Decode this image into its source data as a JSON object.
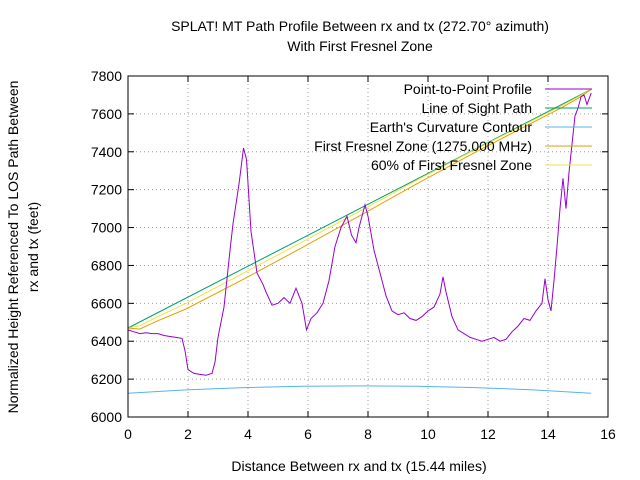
{
  "chart_data": {
    "type": "line",
    "title": "SPLAT! MT Path Profile Between rx and tx (272.70° azimuth)",
    "subtitle": "With First Fresnel Zone",
    "xlabel": "Distance Between rx and tx (15.44 miles)",
    "ylabel_line1": "Normalized Height Referenced To LOS Path Between",
    "ylabel_line2": "rx and tx (feet)",
    "xlim": [
      0,
      16
    ],
    "ylim": [
      6000,
      7800
    ],
    "x_ticks": [
      "0",
      "2",
      "4",
      "6",
      "8",
      "10",
      "12",
      "14",
      "16"
    ],
    "y_ticks": [
      "6000",
      "6200",
      "6400",
      "6600",
      "6800",
      "7000",
      "7200",
      "7400",
      "7600",
      "7800"
    ],
    "grid": true,
    "legend_position": "top-right",
    "series": [
      {
        "name": "Point-to-Point Profile",
        "color": "#9400d3",
        "x": [
          0,
          0.2,
          0.4,
          0.6,
          0.8,
          1.0,
          1.2,
          1.4,
          1.6,
          1.8,
          1.9,
          2.0,
          2.2,
          2.4,
          2.6,
          2.8,
          2.9,
          3.0,
          3.2,
          3.4,
          3.5,
          3.7,
          3.85,
          3.95,
          4.1,
          4.3,
          4.5,
          4.6,
          4.8,
          5.0,
          5.2,
          5.4,
          5.6,
          5.8,
          5.95,
          6.1,
          6.3,
          6.5,
          6.7,
          6.9,
          7.1,
          7.3,
          7.45,
          7.6,
          7.7,
          7.9,
          8.0,
          8.2,
          8.4,
          8.6,
          8.8,
          9.0,
          9.2,
          9.4,
          9.6,
          9.8,
          10.0,
          10.2,
          10.4,
          10.5,
          10.6,
          10.8,
          11.0,
          11.2,
          11.4,
          11.6,
          11.8,
          12.0,
          12.2,
          12.4,
          12.6,
          12.8,
          13.0,
          13.2,
          13.4,
          13.6,
          13.8,
          13.9,
          14.0,
          14.1,
          14.2,
          14.3,
          14.4,
          14.5,
          14.6,
          14.7,
          14.8,
          14.9,
          15.0,
          15.1,
          15.2,
          15.3,
          15.44
        ],
        "values": [
          6460,
          6450,
          6440,
          6445,
          6440,
          6440,
          6430,
          6425,
          6420,
          6415,
          6350,
          6250,
          6230,
          6225,
          6220,
          6230,
          6290,
          6420,
          6580,
          6880,
          7020,
          7230,
          7420,
          7360,
          6980,
          6760,
          6700,
          6660,
          6590,
          6600,
          6630,
          6600,
          6680,
          6600,
          6460,
          6520,
          6550,
          6600,
          6720,
          6900,
          7000,
          7060,
          6960,
          6920,
          7000,
          7120,
          7060,
          6880,
          6760,
          6640,
          6560,
          6540,
          6550,
          6520,
          6510,
          6530,
          6560,
          6580,
          6650,
          6740,
          6660,
          6530,
          6460,
          6440,
          6420,
          6410,
          6400,
          6410,
          6420,
          6400,
          6410,
          6450,
          6480,
          6520,
          6510,
          6560,
          6600,
          6730,
          6620,
          6560,
          6720,
          6900,
          7100,
          7260,
          7100,
          7290,
          7440,
          7590,
          7630,
          7690,
          7700,
          7650,
          7710
        ]
      },
      {
        "name": "Line of Sight Path",
        "color": "#009e73",
        "x": [
          0,
          15.44
        ],
        "values": [
          6470,
          7730
        ]
      },
      {
        "name": "Earth's Curvature Contour",
        "color": "#56b4e9",
        "x": [
          0,
          1.93,
          3.86,
          5.79,
          7.72,
          9.65,
          11.58,
          13.51,
          15.44
        ],
        "values": [
          6125,
          6143,
          6155,
          6162,
          6164,
          6162,
          6155,
          6143,
          6125
        ]
      },
      {
        "name": "First Fresnel Zone (1275.000 MHz)",
        "color": "#e69f00",
        "x": [
          0,
          0.39,
          0.97,
          1.93,
          3.86,
          5.79,
          7.72,
          9.65,
          11.58,
          13.51,
          14.47,
          15.05,
          15.44
        ],
        "values": [
          6470,
          6464,
          6506,
          6570,
          6728,
          6893,
          7062,
          7233,
          7398,
          7556,
          7634,
          7687,
          7730
        ]
      },
      {
        "name": "60% of First Fresnel Zone",
        "color": "#f0e442",
        "x": [
          0,
          0.39,
          0.97,
          1.93,
          3.86,
          5.79,
          7.72,
          9.65,
          11.58,
          13.51,
          14.47,
          15.05,
          15.44
        ],
        "values": [
          6470,
          6482,
          6528,
          6600,
          6760,
          6922,
          7086,
          7252,
          7412,
          7567,
          7644,
          7694,
          7730
        ]
      }
    ]
  }
}
